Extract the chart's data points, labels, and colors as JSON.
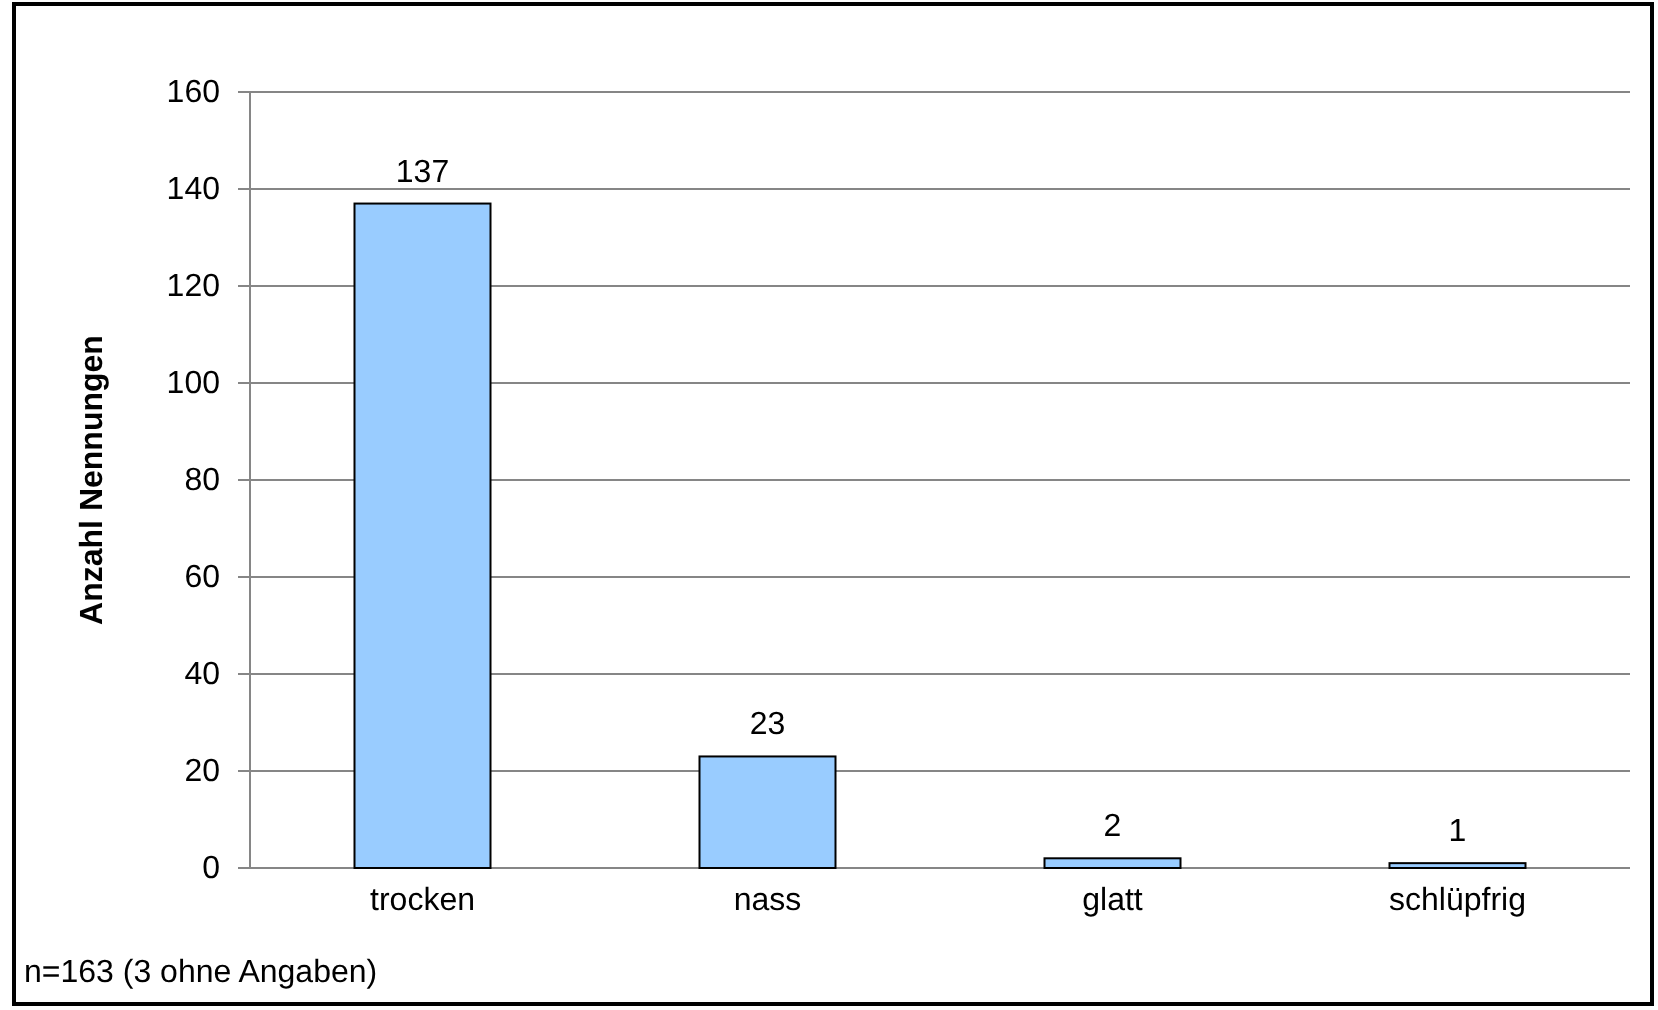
{
  "chart_data": {
    "type": "bar",
    "ylabel": "Anzahl Nennungen",
    "categories": [
      "trocken",
      "nass",
      "glatt",
      "schlüpfrig"
    ],
    "values": [
      137,
      23,
      2,
      1
    ],
    "color": "#99ccff",
    "ylim": [
      0,
      160
    ],
    "yticks": [
      0,
      20,
      40,
      60,
      80,
      100,
      120,
      140,
      160
    ],
    "grid": "y",
    "data_labels": true,
    "annotations": [
      "n=163 (3 ohne Angaben)"
    ]
  }
}
